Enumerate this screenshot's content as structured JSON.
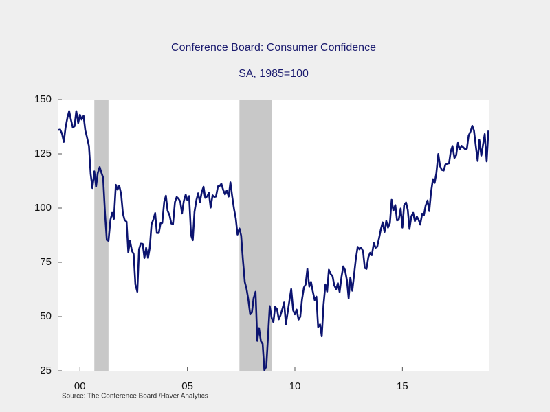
{
  "chart_data": {
    "type": "line",
    "title": "Conference Board: Consumer Confidence",
    "subtitle": "SA, 1985=100",
    "source": "Source:  The Conference Board /Haver Analytics",
    "xlim": [
      1999.5,
      2019.55
    ],
    "xticks": [
      {
        "value": 2000.5,
        "label": "00"
      },
      {
        "value": 2005.5,
        "label": "05"
      },
      {
        "value": 2010.5,
        "label": "10"
      },
      {
        "value": 2015.5,
        "label": "15"
      }
    ],
    "ylim": [
      25,
      150
    ],
    "yticks": [
      25,
      50,
      75,
      100,
      125,
      150
    ],
    "recessions": [
      [
        2001.17,
        2001.83
      ],
      [
        2007.92,
        2009.42
      ]
    ],
    "recession_color": "#c8c8c8",
    "x": [
      1999.5,
      1999.58,
      1999.67,
      1999.75,
      1999.83,
      1999.92,
      2000,
      2000.08,
      2000.17,
      2000.25,
      2000.33,
      2000.42,
      2000.5,
      2000.58,
      2000.67,
      2000.75,
      2000.83,
      2000.92,
      2001,
      2001.08,
      2001.17,
      2001.25,
      2001.33,
      2001.42,
      2001.5,
      2001.58,
      2001.67,
      2001.75,
      2001.83,
      2001.92,
      2002,
      2002.08,
      2002.17,
      2002.25,
      2002.33,
      2002.42,
      2002.5,
      2002.58,
      2002.67,
      2002.75,
      2002.83,
      2002.92,
      2003,
      2003.08,
      2003.17,
      2003.25,
      2003.33,
      2003.42,
      2003.5,
      2003.58,
      2003.67,
      2003.75,
      2003.83,
      2003.92,
      2004,
      2004.08,
      2004.17,
      2004.25,
      2004.33,
      2004.42,
      2004.5,
      2004.58,
      2004.67,
      2004.75,
      2004.83,
      2004.92,
      2005,
      2005.08,
      2005.17,
      2005.25,
      2005.33,
      2005.42,
      2005.5,
      2005.58,
      2005.67,
      2005.75,
      2005.83,
      2005.92,
      2006,
      2006.08,
      2006.17,
      2006.25,
      2006.33,
      2006.42,
      2006.5,
      2006.58,
      2006.67,
      2006.75,
      2006.83,
      2006.92,
      2007,
      2007.08,
      2007.17,
      2007.25,
      2007.33,
      2007.42,
      2007.5,
      2007.58,
      2007.67,
      2007.75,
      2007.83,
      2007.92,
      2008,
      2008.08,
      2008.17,
      2008.25,
      2008.33,
      2008.42,
      2008.5,
      2008.58,
      2008.67,
      2008.75,
      2008.83,
      2008.92,
      2009,
      2009.08,
      2009.17,
      2009.25,
      2009.33,
      2009.42,
      2009.5,
      2009.58,
      2009.67,
      2009.75,
      2009.83,
      2009.92,
      2010,
      2010.08,
      2010.17,
      2010.25,
      2010.33,
      2010.42,
      2010.5,
      2010.58,
      2010.67,
      2010.75,
      2010.83,
      2010.92,
      2011,
      2011.08,
      2011.17,
      2011.25,
      2011.33,
      2011.42,
      2011.5,
      2011.58,
      2011.67,
      2011.75,
      2011.83,
      2011.92,
      2012,
      2012.08,
      2012.17,
      2012.25,
      2012.33,
      2012.42,
      2012.5,
      2012.58,
      2012.67,
      2012.75,
      2012.83,
      2012.92,
      2013,
      2013.08,
      2013.17,
      2013.25,
      2013.33,
      2013.42,
      2013.5,
      2013.58,
      2013.67,
      2013.75,
      2013.83,
      2013.92,
      2014,
      2014.08,
      2014.17,
      2014.25,
      2014.33,
      2014.42,
      2014.5,
      2014.58,
      2014.67,
      2014.75,
      2014.83,
      2014.92,
      2015,
      2015.08,
      2015.17,
      2015.25,
      2015.33,
      2015.42,
      2015.5,
      2015.58,
      2015.67,
      2015.75,
      2015.83,
      2015.92,
      2016,
      2016.08,
      2016.17,
      2016.25,
      2016.33,
      2016.42,
      2016.5,
      2016.58,
      2016.67,
      2016.75,
      2016.83,
      2016.92,
      2017,
      2017.08,
      2017.17,
      2017.25,
      2017.33,
      2017.42,
      2017.5,
      2017.58,
      2017.67,
      2017.75,
      2017.83,
      2017.92,
      2018,
      2018.08,
      2018.17,
      2018.25,
      2018.33,
      2018.42,
      2018.5,
      2018.58,
      2018.67,
      2018.75,
      2018.83,
      2018.92,
      2019,
      2019.08,
      2019.17,
      2019.25,
      2019.33,
      2019.42,
      2019.5
    ],
    "series": [
      {
        "color": "#0c1470",
        "values": [
          136,
          136.2,
          134.2,
          130.5,
          137,
          141.7,
          144.7,
          140.8,
          137.1,
          137.7,
          144.7,
          139.2,
          143,
          140.8,
          142.5,
          135.8,
          132.6,
          128.6,
          115.7,
          109.2,
          116.9,
          109.9,
          116.1,
          118.9,
          116.3,
          114,
          97,
          85.3,
          84.9,
          94.6,
          97.8,
          95,
          110.7,
          108.5,
          110.3,
          106.3,
          97.4,
          94.5,
          93.7,
          79.6,
          84.9,
          80.3,
          78.8,
          64.8,
          61.4,
          81,
          83.6,
          83.5,
          77,
          81.7,
          77,
          81.7,
          92.5,
          94.8,
          97.7,
          88.5,
          88.5,
          93,
          93.1,
          102.8,
          105.7,
          98.7,
          96.7,
          92.9,
          92.6,
          102.7,
          105.1,
          104.4,
          103,
          97.5,
          103.1,
          106.2,
          103.6,
          105.5,
          87.5,
          85.2,
          98.3,
          103.8,
          106.8,
          102.7,
          107.5,
          109.8,
          104.7,
          105.4,
          107,
          100.2,
          105.9,
          105.1,
          105.3,
          110,
          110.2,
          111.2,
          108.2,
          106.3,
          108,
          105.3,
          111.9,
          105.6,
          99.5,
          95.2,
          87.8,
          90.6,
          87.3,
          76.4,
          65.9,
          62.8,
          58.1,
          51,
          51.9,
          58.5,
          61.4,
          38.8,
          44.7,
          38.6,
          37.4,
          25.3,
          26.9,
          40.8,
          54.8,
          49.3,
          47.4,
          54.5,
          53.4,
          48.7,
          50.6,
          53.6,
          56.5,
          46.4,
          52.3,
          57.7,
          62.7,
          52.9,
          51,
          53.2,
          48.6,
          49.9,
          57.8,
          63.4,
          64.8,
          72,
          63.8,
          66,
          61.7,
          57.6,
          59.2,
          45.2,
          46.4,
          40.9,
          55.2,
          64.8,
          61.5,
          71.6,
          69.5,
          68.7,
          64.4,
          62.7,
          65.4,
          61.3,
          68.4,
          73.1,
          71.5,
          66.7,
          58.4,
          68,
          61.9,
          69,
          76.2,
          82.1,
          81,
          81.8,
          80.2,
          72.4,
          72,
          77.5,
          79.4,
          78.3,
          83.9,
          81.7,
          82.2,
          86.4,
          90.3,
          93.4,
          89,
          94.1,
          91,
          93.1,
          103.8,
          98.8,
          101.4,
          94.3,
          94.6,
          99.8,
          91,
          101.3,
          102.6,
          99.1,
          90.4,
          96.3,
          97.8,
          94,
          96.1,
          94.7,
          92.4,
          97.4,
          96.7,
          101.1,
          103.5,
          98.6,
          107.1,
          113.3,
          111.6,
          116.1,
          124.9,
          119.4,
          117.6,
          117.3,
          120,
          120.4,
          120.6,
          126.2,
          128.6,
          123.1,
          124.3,
          130,
          127,
          128.7,
          128,
          127.1,
          127.4,
          133.4,
          135.3,
          137.9,
          135.7,
          128.1,
          121.7,
          131.4,
          124.2,
          129.2,
          134.1,
          121.5,
          135.7
        ]
      }
    ]
  }
}
